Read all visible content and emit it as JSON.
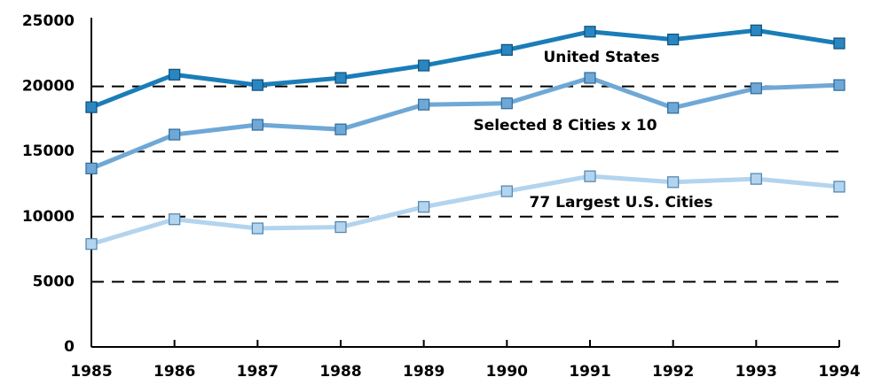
{
  "chart_data": {
    "type": "line",
    "x": [
      1985,
      1986,
      1987,
      1988,
      1989,
      1990,
      1991,
      1992,
      1993,
      1994
    ],
    "xlim": [
      1985,
      1994
    ],
    "series": [
      {
        "name": "United States",
        "color": "#1a7db8",
        "values": [
          18400,
          20900,
          20100,
          20650,
          21600,
          22800,
          24200,
          23600,
          24300,
          23300
        ]
      },
      {
        "name": "Selected 8 Cities x 10",
        "color": "#6fa8d6",
        "values": [
          13700,
          16300,
          17050,
          16700,
          18600,
          18700,
          20650,
          18350,
          19850,
          20100
        ]
      },
      {
        "name": "77 Largest U.S. Cities",
        "color": "#b3d4ee",
        "values": [
          7900,
          9800,
          9100,
          9200,
          10750,
          11950,
          13100,
          12650,
          12900,
          12300
        ]
      }
    ],
    "ylim": [
      0,
      25000
    ],
    "yticks": [
      0,
      5000,
      10000,
      15000,
      20000,
      25000
    ],
    "grid": true
  }
}
